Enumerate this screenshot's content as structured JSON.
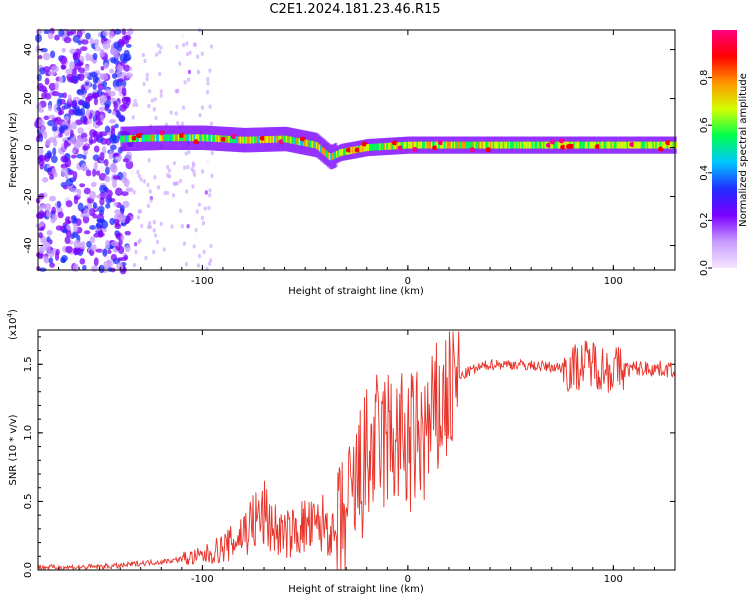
{
  "title": "C2E1.2024.181.23.46.R15",
  "chart_data": [
    {
      "type": "heatmap",
      "xlabel": "Height of straight line (km)",
      "ylabel": "Frequency (Hz)",
      "xlim": [
        -180,
        130
      ],
      "ylim": [
        -50,
        48
      ],
      "xticks": [
        -100,
        0,
        100
      ],
      "yticks": [
        -40,
        -20,
        0,
        20,
        40
      ],
      "colorbar": {
        "label": "Normalized spectral amplitude",
        "range": [
          0,
          1
        ],
        "ticks": [
          0.0,
          0.2,
          0.4,
          0.6,
          0.8
        ],
        "tick_labels": [
          "0.0",
          "0.2",
          "0.4",
          "0.6",
          "0.8"
        ],
        "colors": [
          "#f5e6ff",
          "#c79bff",
          "#7a00ff",
          "#1f2dff",
          "#00c8ff",
          "#00ff50",
          "#d2ff00",
          "#ff9600",
          "#ff0000",
          "#ff0080"
        ]
      },
      "ridge": [
        {
          "x": -140,
          "y": 3.5
        },
        {
          "x": -120,
          "y": 4.0
        },
        {
          "x": -100,
          "y": 4.0
        },
        {
          "x": -80,
          "y": 3.0
        },
        {
          "x": -60,
          "y": 3.5
        },
        {
          "x": -45,
          "y": 1.0
        },
        {
          "x": -38,
          "y": -4.0
        },
        {
          "x": -33,
          "y": -2.0
        },
        {
          "x": -20,
          "y": 0.0
        },
        {
          "x": 0,
          "y": 1.0
        },
        {
          "x": 30,
          "y": 1.0
        },
        {
          "x": 60,
          "y": 1.0
        },
        {
          "x": 100,
          "y": 1.0
        },
        {
          "x": 130,
          "y": 1.0
        }
      ]
    },
    {
      "type": "line",
      "xlabel": "Height of straight line (km)",
      "ylabel": "SNR (10 * v/v)",
      "y_multiplier": "(x10",
      "y_multiplier_exp": "4",
      "xlim": [
        -180,
        130
      ],
      "ylim": [
        0,
        1.75
      ],
      "xticks": [
        -100,
        0,
        100
      ],
      "yticks": [
        0.0,
        0.5,
        1.0,
        1.5
      ],
      "ytick_labels": [
        "0.0",
        "0.5",
        "1.0",
        "1.5"
      ],
      "line_color": "#e8332a",
      "series": [
        {
          "x": [
            -180,
            -160,
            -140,
            -130,
            -120,
            -110,
            -100,
            -95,
            -90,
            -85,
            -80,
            -75,
            -70,
            -65,
            -60,
            -55,
            -50,
            -45,
            -40,
            -35,
            -30,
            -25,
            -20,
            -15,
            -10,
            -5,
            0,
            5,
            10,
            15,
            20,
            25,
            30,
            40,
            50,
            60,
            70,
            80,
            85,
            90,
            95,
            100,
            110,
            120,
            130
          ],
          "y": [
            0.02,
            0.02,
            0.03,
            0.05,
            0.06,
            0.08,
            0.1,
            0.13,
            0.16,
            0.2,
            0.28,
            0.35,
            0.4,
            0.3,
            0.25,
            0.28,
            0.32,
            0.3,
            0.35,
            0.2,
            0.35,
            0.6,
            0.8,
            0.9,
            0.95,
            0.95,
            0.9,
            0.95,
            1.0,
            1.15,
            1.3,
            1.4,
            1.45,
            1.5,
            1.5,
            1.49,
            1.48,
            1.47,
            1.5,
            1.52,
            1.47,
            1.46,
            1.47,
            1.47,
            1.46
          ]
        }
      ]
    }
  ]
}
